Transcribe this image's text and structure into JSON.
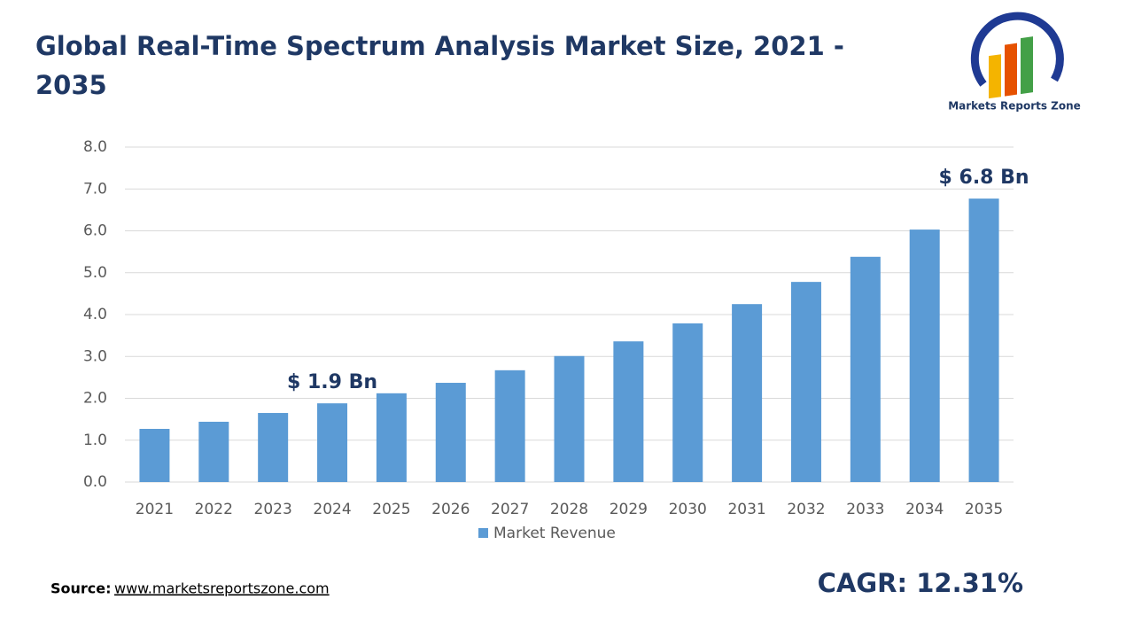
{
  "chart_data": {
    "type": "bar",
    "title": "Global Real-Time Spectrum Analysis Market Size, 2021 - 2035",
    "categories": [
      "2021",
      "2022",
      "2023",
      "2024",
      "2025",
      "2026",
      "2027",
      "2028",
      "2029",
      "2030",
      "2031",
      "2032",
      "2033",
      "2034",
      "2035"
    ],
    "series": [
      {
        "name": "Market Revenue",
        "color": "#5b9bd5",
        "values": [
          1.27,
          1.44,
          1.65,
          1.88,
          2.12,
          2.37,
          2.67,
          3.01,
          3.36,
          3.79,
          4.25,
          4.78,
          5.38,
          6.03,
          6.77
        ],
        "value_labels": [
          null,
          null,
          null,
          "$ 1.9 Bn",
          null,
          null,
          null,
          null,
          null,
          null,
          null,
          null,
          null,
          null,
          "$ 6.8 Bn"
        ]
      }
    ],
    "ylim": [
      0,
      8
    ],
    "yticks": [
      {
        "value": 0,
        "label": "0.0"
      },
      {
        "value": 1,
        "label": "1.0"
      },
      {
        "value": 2,
        "label": "2.0"
      },
      {
        "value": 3,
        "label": "3.0"
      },
      {
        "value": 4,
        "label": "4.0"
      },
      {
        "value": 5,
        "label": "5.0"
      },
      {
        "value": 6,
        "label": "6.0"
      },
      {
        "value": 7,
        "label": "7.0"
      },
      {
        "value": 8,
        "label": "8.0"
      }
    ],
    "grid": true,
    "legend": "bottom"
  },
  "source_label": "Source:",
  "source_url": "www.marketsreportszone.com",
  "cagr": "CAGR: 12.31%",
  "logo_text": "Markets Reports Zone"
}
